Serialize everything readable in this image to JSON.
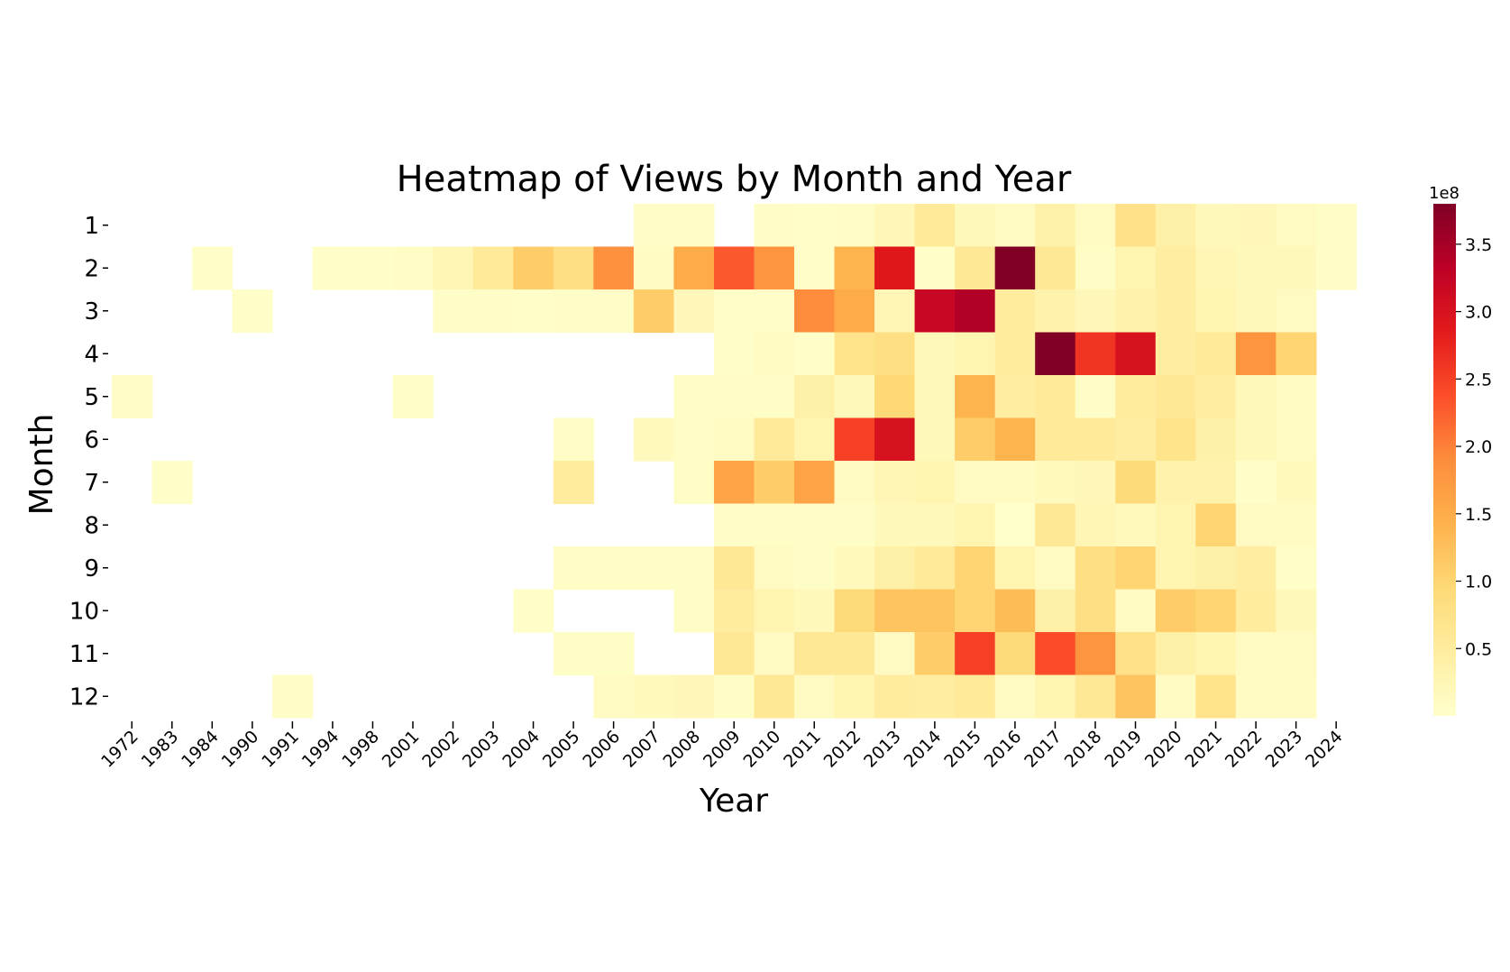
{
  "chart_data": {
    "type": "heatmap",
    "title": "Heatmap of Views by Month and Year",
    "xlabel": "Year",
    "ylabel": "Month",
    "x_categories": [
      "1972",
      "1983",
      "1984",
      "1990",
      "1991",
      "1994",
      "1998",
      "2001",
      "2002",
      "2003",
      "2004",
      "2005",
      "2006",
      "2007",
      "2008",
      "2009",
      "2010",
      "2011",
      "2012",
      "2013",
      "2014",
      "2015",
      "2016",
      "2017",
      "2018",
      "2019",
      "2020",
      "2021",
      "2022",
      "2023",
      "2024"
    ],
    "y_categories": [
      "1",
      "2",
      "3",
      "4",
      "5",
      "6",
      "7",
      "8",
      "9",
      "10",
      "11",
      "12"
    ],
    "value_unit_note": "values in units of 1e8 views; null = no data",
    "values": [
      [
        null,
        null,
        null,
        null,
        null,
        null,
        null,
        null,
        null,
        null,
        null,
        null,
        null,
        0.05,
        0.05,
        null,
        0.06,
        0.04,
        0.06,
        0.22,
        0.55,
        0.18,
        0.12,
        0.38,
        0.12,
        0.75,
        0.4,
        0.18,
        0.2,
        0.12,
        0.06
      ],
      [
        null,
        null,
        0.04,
        null,
        null,
        0.04,
        0.03,
        0.06,
        0.25,
        0.55,
        1.1,
        0.8,
        1.85,
        0.1,
        1.5,
        2.3,
        1.8,
        0.04,
        1.4,
        2.9,
        0.04,
        0.6,
        3.8,
        0.6,
        0.06,
        0.3,
        0.45,
        0.25,
        0.18,
        0.18,
        0.05
      ],
      [
        null,
        null,
        null,
        0.04,
        null,
        null,
        null,
        null,
        0.05,
        0.05,
        0.03,
        0.05,
        0.05,
        1.1,
        0.2,
        0.03,
        0.04,
        1.9,
        1.5,
        0.25,
        3.2,
        3.4,
        0.5,
        0.35,
        0.2,
        0.35,
        0.45,
        0.3,
        0.18,
        0.12,
        null
      ],
      [
        null,
        null,
        null,
        null,
        null,
        null,
        null,
        null,
        null,
        null,
        null,
        null,
        null,
        null,
        null,
        0.03,
        0.12,
        0.04,
        0.7,
        0.8,
        0.18,
        0.3,
        0.5,
        3.8,
        2.6,
        3.0,
        0.45,
        0.55,
        1.8,
        1.0,
        null
      ],
      [
        0.05,
        null,
        null,
        null,
        null,
        null,
        null,
        0.03,
        null,
        null,
        null,
        null,
        null,
        null,
        0.06,
        0.06,
        0.06,
        0.4,
        0.18,
        0.95,
        0.18,
        1.4,
        0.45,
        0.55,
        0.05,
        0.5,
        0.6,
        0.45,
        0.18,
        0.1,
        null
      ],
      [
        null,
        null,
        null,
        null,
        null,
        null,
        null,
        null,
        null,
        null,
        null,
        0.06,
        null,
        0.15,
        0.07,
        0.1,
        0.55,
        0.3,
        2.5,
        3.0,
        0.18,
        1.1,
        1.4,
        0.55,
        0.55,
        0.45,
        0.7,
        0.4,
        0.18,
        0.1,
        null
      ],
      [
        null,
        0.04,
        null,
        null,
        null,
        null,
        null,
        null,
        null,
        null,
        null,
        0.5,
        null,
        null,
        0.06,
        1.6,
        1.1,
        1.6,
        0.12,
        0.25,
        0.3,
        0.12,
        0.1,
        0.15,
        0.2,
        0.9,
        0.35,
        0.35,
        0.03,
        0.15,
        null
      ],
      [
        null,
        null,
        null,
        null,
        null,
        null,
        null,
        null,
        null,
        null,
        null,
        null,
        null,
        null,
        null,
        0.06,
        0.06,
        0.06,
        0.06,
        0.18,
        0.18,
        0.3,
        0.01,
        0.6,
        0.25,
        0.15,
        0.3,
        1.0,
        0.12,
        0.1,
        null
      ],
      [
        null,
        null,
        null,
        null,
        null,
        null,
        null,
        null,
        null,
        null,
        null,
        0.06,
        0.06,
        0.06,
        0.06,
        0.6,
        0.12,
        0.06,
        0.15,
        0.4,
        0.55,
        1.0,
        0.3,
        0.12,
        0.8,
        1.0,
        0.3,
        0.4,
        0.45,
        0.04,
        null
      ],
      [
        null,
        null,
        null,
        null,
        null,
        null,
        null,
        null,
        null,
        null,
        0.04,
        null,
        null,
        null,
        0.06,
        0.5,
        0.3,
        0.18,
        0.9,
        1.2,
        1.2,
        1.0,
        1.3,
        0.4,
        0.8,
        0.12,
        1.1,
        1.0,
        0.5,
        0.18,
        null
      ],
      [
        null,
        null,
        null,
        null,
        null,
        null,
        null,
        null,
        null,
        null,
        null,
        0.06,
        0.06,
        null,
        null,
        0.6,
        0.12,
        0.6,
        0.6,
        0.12,
        1.1,
        2.5,
        0.9,
        2.4,
        1.8,
        0.75,
        0.4,
        0.3,
        0.12,
        0.12,
        null
      ],
      [
        null,
        null,
        null,
        null,
        0.05,
        null,
        null,
        null,
        null,
        null,
        null,
        null,
        0.1,
        0.15,
        0.2,
        0.06,
        0.6,
        0.12,
        0.3,
        0.5,
        0.45,
        0.55,
        0.12,
        0.3,
        0.6,
        1.2,
        0.1,
        0.7,
        0.1,
        0.1,
        null
      ]
    ],
    "colorbar": {
      "label": "1e8",
      "min": 0,
      "max": 3.8,
      "ticks": [
        "0.5",
        "1.0",
        "1.5",
        "2.0",
        "2.5",
        "3.0",
        "3.5"
      ],
      "colormap": "YlOrRd",
      "stops": [
        "#ffffcc",
        "#ffeda0",
        "#fed976",
        "#feb24c",
        "#fd8d3c",
        "#fc4e2a",
        "#e31a1c",
        "#bd0026",
        "#800026"
      ]
    }
  }
}
